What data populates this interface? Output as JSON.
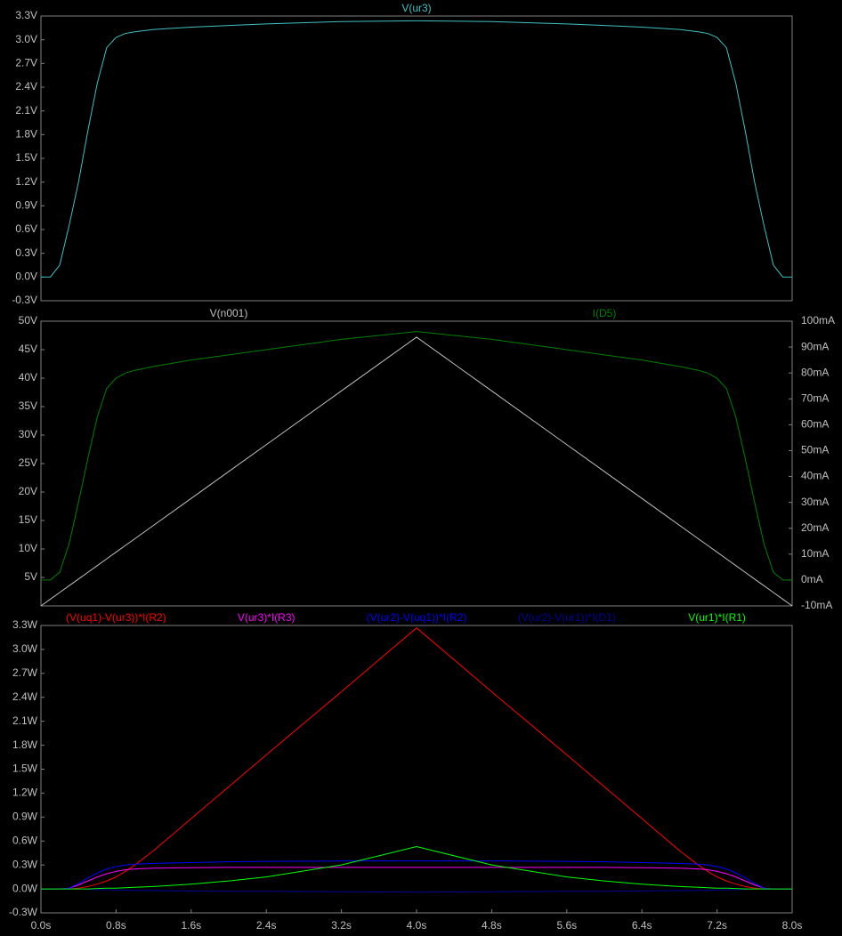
{
  "chart_data": [
    {
      "type": "line",
      "x": [
        0,
        0.1,
        0.2,
        0.3,
        0.4,
        0.5,
        0.6,
        0.7,
        0.8,
        0.9,
        1.0,
        1.2,
        1.6,
        2.0,
        2.4,
        3.2,
        4.0,
        4.8,
        5.6,
        6.0,
        6.4,
        6.8,
        7.0,
        7.1,
        7.2,
        7.3,
        7.4,
        7.5,
        7.6,
        7.7,
        7.8,
        7.9,
        8.0
      ],
      "xlim": [
        0,
        8
      ],
      "ylim": [
        -0.3,
        3.3
      ],
      "yticks": [
        {
          "value": -0.3,
          "label": "-0.3V"
        },
        {
          "value": 0,
          "label": "0.0V"
        },
        {
          "value": 0.3,
          "label": "0.3V"
        },
        {
          "value": 0.6,
          "label": "0.6V"
        },
        {
          "value": 0.9,
          "label": "0.9V"
        },
        {
          "value": 1.2,
          "label": "1.2V"
        },
        {
          "value": 1.5,
          "label": "1.5V"
        },
        {
          "value": 1.8,
          "label": "1.8V"
        },
        {
          "value": 2.1,
          "label": "2.1V"
        },
        {
          "value": 2.4,
          "label": "2.4V"
        },
        {
          "value": 2.7,
          "label": "2.7V"
        },
        {
          "value": 3.0,
          "label": "3.0V"
        },
        {
          "value": 3.3,
          "label": "3.3V"
        }
      ],
      "series": [
        {
          "name": "V(ur3)",
          "color": "#40c0c0",
          "values": [
            0,
            0,
            0.15,
            0.65,
            1.2,
            1.85,
            2.45,
            2.9,
            3.03,
            3.08,
            3.1,
            3.13,
            3.16,
            3.18,
            3.2,
            3.23,
            3.24,
            3.23,
            3.2,
            3.18,
            3.16,
            3.13,
            3.1,
            3.08,
            3.03,
            2.9,
            2.45,
            1.85,
            1.2,
            0.65,
            0.15,
            0,
            0
          ]
        }
      ]
    },
    {
      "type": "line",
      "x": [
        0,
        0.1,
        0.2,
        0.3,
        0.4,
        0.5,
        0.6,
        0.7,
        0.8,
        0.9,
        1.0,
        1.2,
        1.6,
        2.0,
        2.4,
        3.2,
        4.0,
        4.8,
        5.6,
        6.0,
        6.4,
        6.8,
        7.0,
        7.1,
        7.2,
        7.3,
        7.4,
        7.5,
        7.6,
        7.7,
        7.8,
        7.9,
        8.0
      ],
      "xlim": [
        0,
        8
      ],
      "ylim": [
        0,
        50
      ],
      "yticks": [
        {
          "value": 5,
          "label": "5V"
        },
        {
          "value": 10,
          "label": "10V"
        },
        {
          "value": 15,
          "label": "15V"
        },
        {
          "value": 20,
          "label": "20V"
        },
        {
          "value": 25,
          "label": "25V"
        },
        {
          "value": 30,
          "label": "30V"
        },
        {
          "value": 35,
          "label": "35V"
        },
        {
          "value": 40,
          "label": "40V"
        },
        {
          "value": 45,
          "label": "45V"
        },
        {
          "value": 50,
          "label": "50V"
        }
      ],
      "y2lim": [
        -10,
        100
      ],
      "y2ticks": [
        {
          "value": -10,
          "label": "-10mA"
        },
        {
          "value": 0,
          "label": "0mA"
        },
        {
          "value": 10,
          "label": "10mA"
        },
        {
          "value": 20,
          "label": "20mA"
        },
        {
          "value": 30,
          "label": "30mA"
        },
        {
          "value": 40,
          "label": "40mA"
        },
        {
          "value": 50,
          "label": "50mA"
        },
        {
          "value": 60,
          "label": "60mA"
        },
        {
          "value": 70,
          "label": "70mA"
        },
        {
          "value": 80,
          "label": "80mA"
        },
        {
          "value": 90,
          "label": "90mA"
        },
        {
          "value": 100,
          "label": "100mA"
        }
      ],
      "series": [
        {
          "name": "V(n001)",
          "color": "#c0c0c0",
          "values": [
            0,
            1.18,
            2.36,
            3.54,
            4.72,
            5.9,
            7.08,
            8.26,
            9.44,
            10.62,
            11.8,
            14.16,
            18.88,
            23.6,
            28.32,
            37.76,
            47.2,
            37.76,
            28.32,
            23.6,
            18.88,
            14.16,
            11.8,
            10.62,
            9.44,
            8.26,
            7.08,
            5.9,
            4.72,
            3.54,
            2.36,
            1.18,
            0
          ]
        },
        {
          "name": "I(D5)",
          "color": "#008000",
          "axis": "y2",
          "values": [
            0,
            0,
            3,
            14,
            30,
            47,
            63,
            74,
            78,
            80,
            81,
            82.5,
            85,
            87,
            89,
            93,
            96,
            93,
            89,
            87,
            85,
            82.5,
            81,
            80,
            78,
            74,
            63,
            47,
            30,
            14,
            3,
            0,
            0
          ]
        }
      ]
    },
    {
      "type": "line",
      "x": [
        0,
        0.1,
        0.2,
        0.3,
        0.4,
        0.5,
        0.6,
        0.7,
        0.8,
        0.9,
        1.0,
        1.2,
        1.6,
        2.0,
        2.4,
        3.2,
        4.0,
        4.8,
        5.6,
        6.0,
        6.4,
        6.8,
        7.0,
        7.1,
        7.2,
        7.3,
        7.4,
        7.5,
        7.6,
        7.7,
        7.8,
        7.9,
        8.0
      ],
      "xlim": [
        0,
        8
      ],
      "xticks": [
        {
          "value": 0,
          "label": "0.0s"
        },
        {
          "value": 0.8,
          "label": "0.8s"
        },
        {
          "value": 1.6,
          "label": "1.6s"
        },
        {
          "value": 2.4,
          "label": "2.4s"
        },
        {
          "value": 3.2,
          "label": "3.2s"
        },
        {
          "value": 4.0,
          "label": "4.0s"
        },
        {
          "value": 4.8,
          "label": "4.8s"
        },
        {
          "value": 5.6,
          "label": "5.6s"
        },
        {
          "value": 6.4,
          "label": "6.4s"
        },
        {
          "value": 7.2,
          "label": "7.2s"
        },
        {
          "value": 8.0,
          "label": "8.0s"
        }
      ],
      "ylim": [
        -0.3,
        3.3
      ],
      "yticks": [
        {
          "value": -0.3,
          "label": "-0.3W"
        },
        {
          "value": 0,
          "label": "0.0W"
        },
        {
          "value": 0.3,
          "label": "0.3W"
        },
        {
          "value": 0.6,
          "label": "0.6W"
        },
        {
          "value": 0.9,
          "label": "0.9W"
        },
        {
          "value": 1.2,
          "label": "1.2W"
        },
        {
          "value": 1.5,
          "label": "1.5W"
        },
        {
          "value": 1.8,
          "label": "1.8W"
        },
        {
          "value": 2.1,
          "label": "2.1W"
        },
        {
          "value": 2.4,
          "label": "2.4W"
        },
        {
          "value": 2.7,
          "label": "2.7W"
        },
        {
          "value": 3.0,
          "label": "3.0W"
        },
        {
          "value": 3.3,
          "label": "3.3W"
        }
      ],
      "series": [
        {
          "name": "(V(uq1)-V(ur3))*I(R2)",
          "color": "#ff0000",
          "values": [
            0,
            0,
            0,
            0,
            0.01,
            0.03,
            0.06,
            0.1,
            0.15,
            0.22,
            0.3,
            0.48,
            0.88,
            1.28,
            1.68,
            2.47,
            3.27,
            2.47,
            1.68,
            1.28,
            0.88,
            0.48,
            0.3,
            0.22,
            0.15,
            0.1,
            0.06,
            0.03,
            0.01,
            0,
            0,
            0,
            0
          ]
        },
        {
          "name": "V(ur3)*I(R3)",
          "color": "#ff00ff",
          "values": [
            0,
            0,
            0,
            0.01,
            0.05,
            0.1,
            0.15,
            0.19,
            0.22,
            0.24,
            0.25,
            0.26,
            0.265,
            0.27,
            0.27,
            0.27,
            0.27,
            0.27,
            0.27,
            0.27,
            0.265,
            0.26,
            0.25,
            0.24,
            0.22,
            0.19,
            0.15,
            0.1,
            0.05,
            0.01,
            0,
            0,
            0
          ]
        },
        {
          "name": "(V(ur2)-V(uq1))*I(R2)",
          "color": "#0000ff",
          "values": [
            0,
            0,
            0,
            0.01,
            0.07,
            0.14,
            0.2,
            0.25,
            0.28,
            0.3,
            0.31,
            0.32,
            0.33,
            0.34,
            0.345,
            0.35,
            0.35,
            0.35,
            0.345,
            0.34,
            0.33,
            0.32,
            0.31,
            0.3,
            0.28,
            0.25,
            0.2,
            0.14,
            0.07,
            0.01,
            0,
            0,
            0
          ]
        },
        {
          "name": "(V(ur2)-V(ur1))*I(D1)",
          "color": "#0000a0",
          "values": [
            0,
            0,
            0,
            0,
            0,
            -0.005,
            -0.01,
            -0.01,
            -0.015,
            -0.015,
            -0.02,
            -0.02,
            -0.025,
            -0.03,
            -0.03,
            -0.035,
            -0.04,
            -0.035,
            -0.03,
            -0.03,
            -0.025,
            -0.02,
            -0.02,
            -0.015,
            -0.015,
            -0.01,
            -0.01,
            -0.005,
            0,
            0,
            0,
            0,
            0
          ]
        },
        {
          "name": "V(ur1)*I(R1)",
          "color": "#00ff00",
          "values": [
            0,
            0,
            0,
            0,
            0,
            0,
            0.005,
            0.01,
            0.01,
            0.015,
            0.02,
            0.03,
            0.06,
            0.1,
            0.15,
            0.3,
            0.53,
            0.3,
            0.15,
            0.1,
            0.06,
            0.03,
            0.02,
            0.015,
            0.01,
            0.01,
            0.005,
            0,
            0,
            0,
            0,
            0,
            0
          ]
        }
      ]
    }
  ]
}
